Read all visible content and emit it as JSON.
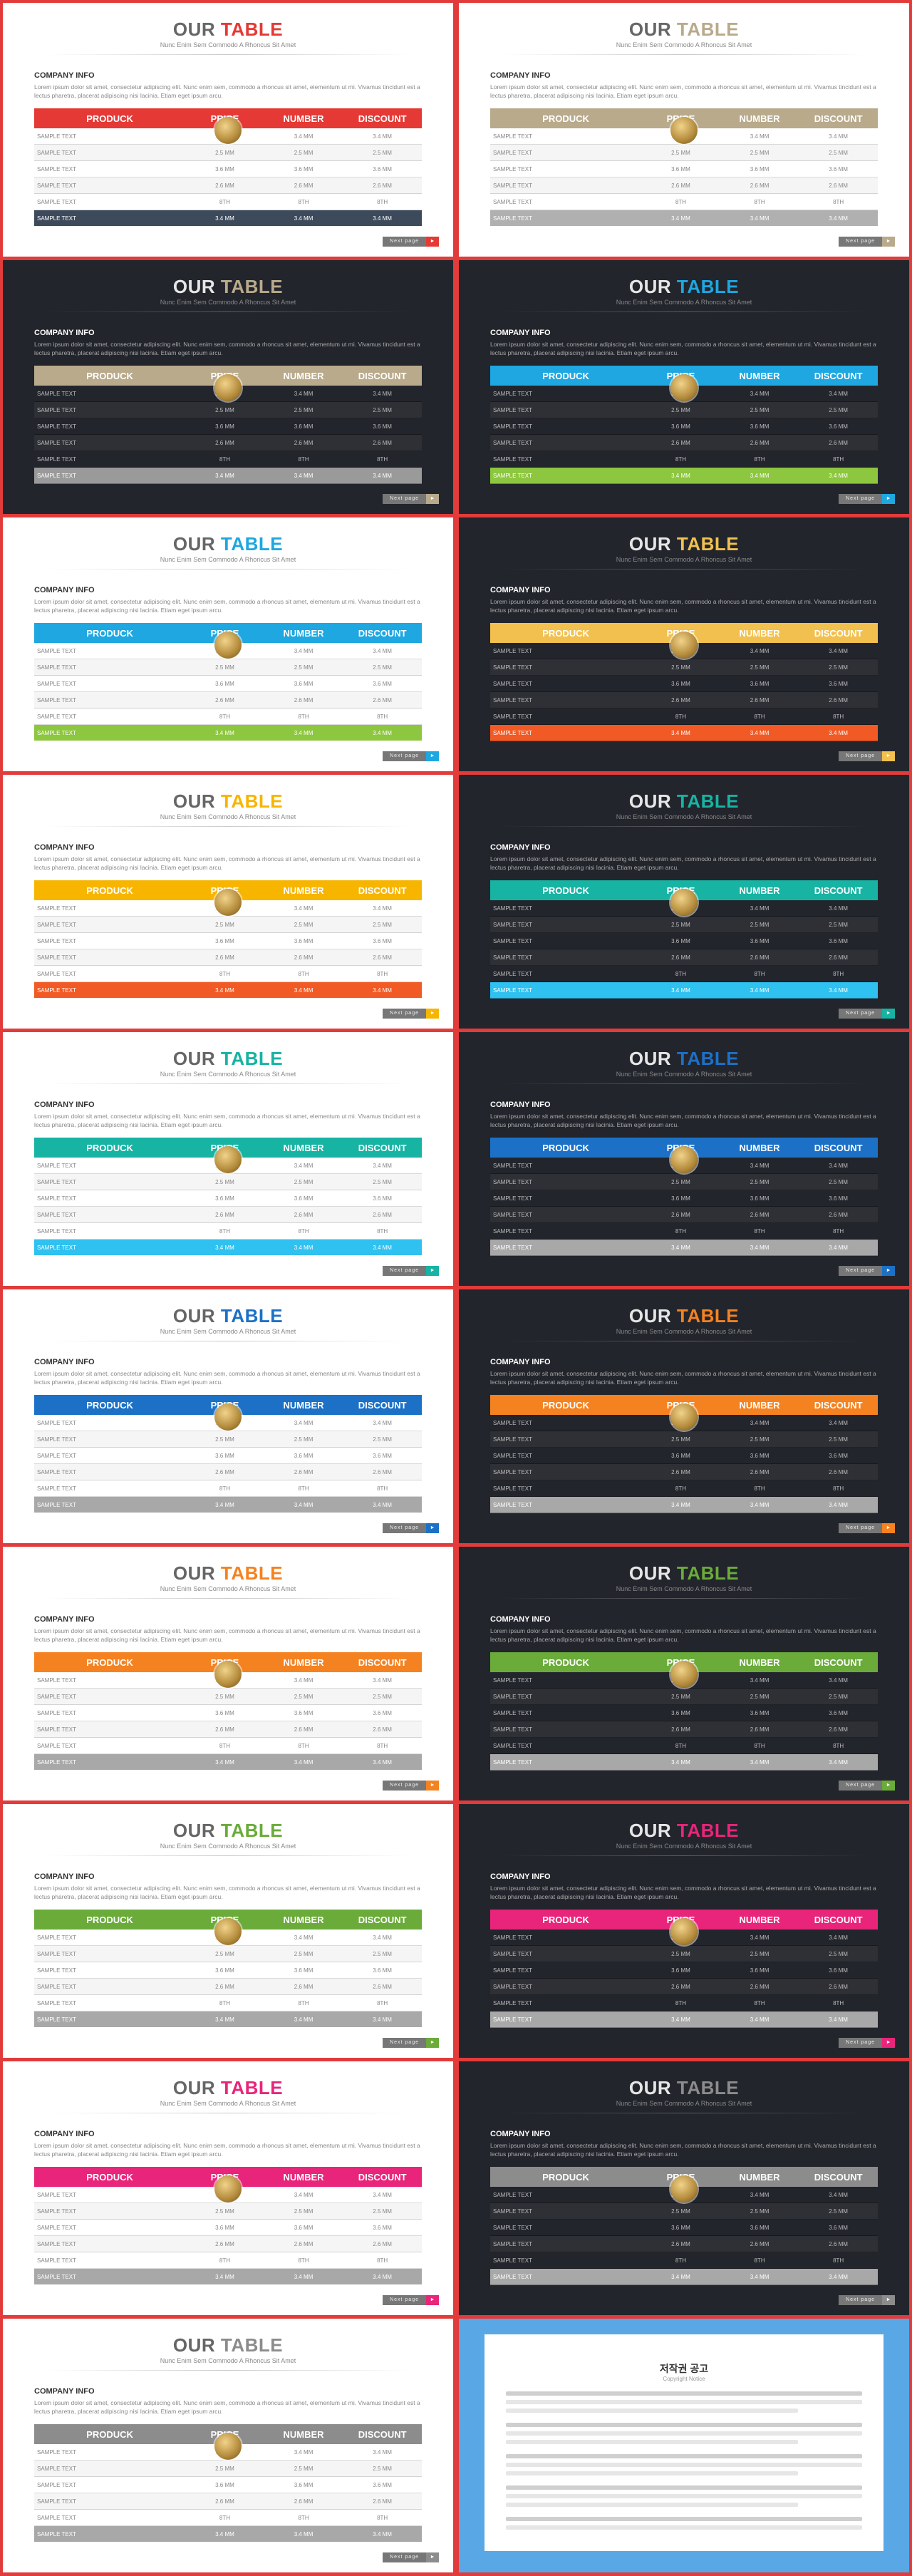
{
  "slide_template": {
    "title_prefix": "OUR",
    "title_suffix": "TABLE",
    "subtitle": "Nunc Enim Sem Commodo A Rhoncus Sit Amet",
    "info_heading": "COMPANY INFO",
    "info_body": "Lorem ipsum dolor sit amet, consectetur adipiscing elit. Nunc enim sem, commodo a rhoncus sit amet, elementum ut mi. Vivamus tincidunt est a lectus pharetra, placerat adipiscing nisi lacinia. Etiam eget ipsum arcu.",
    "headers": [
      "PRODUCK",
      "PRICE",
      "NUMBER",
      "DISCOUNT"
    ],
    "rows": [
      [
        "SAMPLE TEXT",
        "3.4 MM",
        "3.4 MM",
        "3.4 MM"
      ],
      [
        "SAMPLE TEXT",
        "2.5 MM",
        "2.5 MM",
        "2.5 MM"
      ],
      [
        "SAMPLE TEXT",
        "3.6 MM",
        "3.6 MM",
        "3.6 MM"
      ],
      [
        "SAMPLE TEXT",
        "2.6 MM",
        "2.6 MM",
        "2.6 MM"
      ],
      [
        "SAMPLE TEXT",
        "8TH",
        "8TH",
        "8TH"
      ],
      [
        "SAMPLE TEXT",
        "3.4 MM",
        "3.4 MM",
        "3.4 MM"
      ]
    ],
    "page_label": "Next page"
  },
  "slides": [
    {
      "theme": "light",
      "accent": "#e53935",
      "last": "#3d4a5c"
    },
    {
      "theme": "light",
      "accent": "#b9aa8c",
      "last": "#b0b0b0"
    },
    {
      "theme": "dark",
      "accent": "#b9aa8c",
      "last": "#9a9a9a"
    },
    {
      "theme": "dark",
      "accent": "#1ea7e1",
      "last": "#8dc63f"
    },
    {
      "theme": "light",
      "accent": "#1ea7e1",
      "last": "#8dc63f"
    },
    {
      "theme": "dark",
      "accent": "#f1c04f",
      "last": "#f15a24"
    },
    {
      "theme": "light",
      "accent": "#f7b500",
      "last": "#f15a24"
    },
    {
      "theme": "dark",
      "accent": "#17b3a3",
      "last": "#2fc1ef"
    },
    {
      "theme": "light",
      "accent": "#17b3a3",
      "last": "#2fc1ef"
    },
    {
      "theme": "dark",
      "accent": "#1c71c7",
      "last": "#a8a8a8"
    },
    {
      "theme": "light",
      "accent": "#1c71c7",
      "last": "#a8a8a8"
    },
    {
      "theme": "dark",
      "accent": "#f58220",
      "last": "#a8a8a8"
    },
    {
      "theme": "light",
      "accent": "#f58220",
      "last": "#a8a8a8"
    },
    {
      "theme": "dark",
      "accent": "#6aab3a",
      "last": "#a8a8a8"
    },
    {
      "theme": "light",
      "accent": "#6aab3a",
      "last": "#a8a8a8"
    },
    {
      "theme": "dark",
      "accent": "#e8257a",
      "last": "#a8a8a8"
    },
    {
      "theme": "light",
      "accent": "#e8257a",
      "last": "#a8a8a8"
    },
    {
      "theme": "dark",
      "accent": "#8c8c8c",
      "last": "#a8a8a8"
    },
    {
      "theme": "light",
      "accent": "#8c8c8c",
      "last": "#a8a8a8"
    }
  ],
  "notice": {
    "title": "저작권 공고",
    "subtitle": "Copyright Notice"
  }
}
